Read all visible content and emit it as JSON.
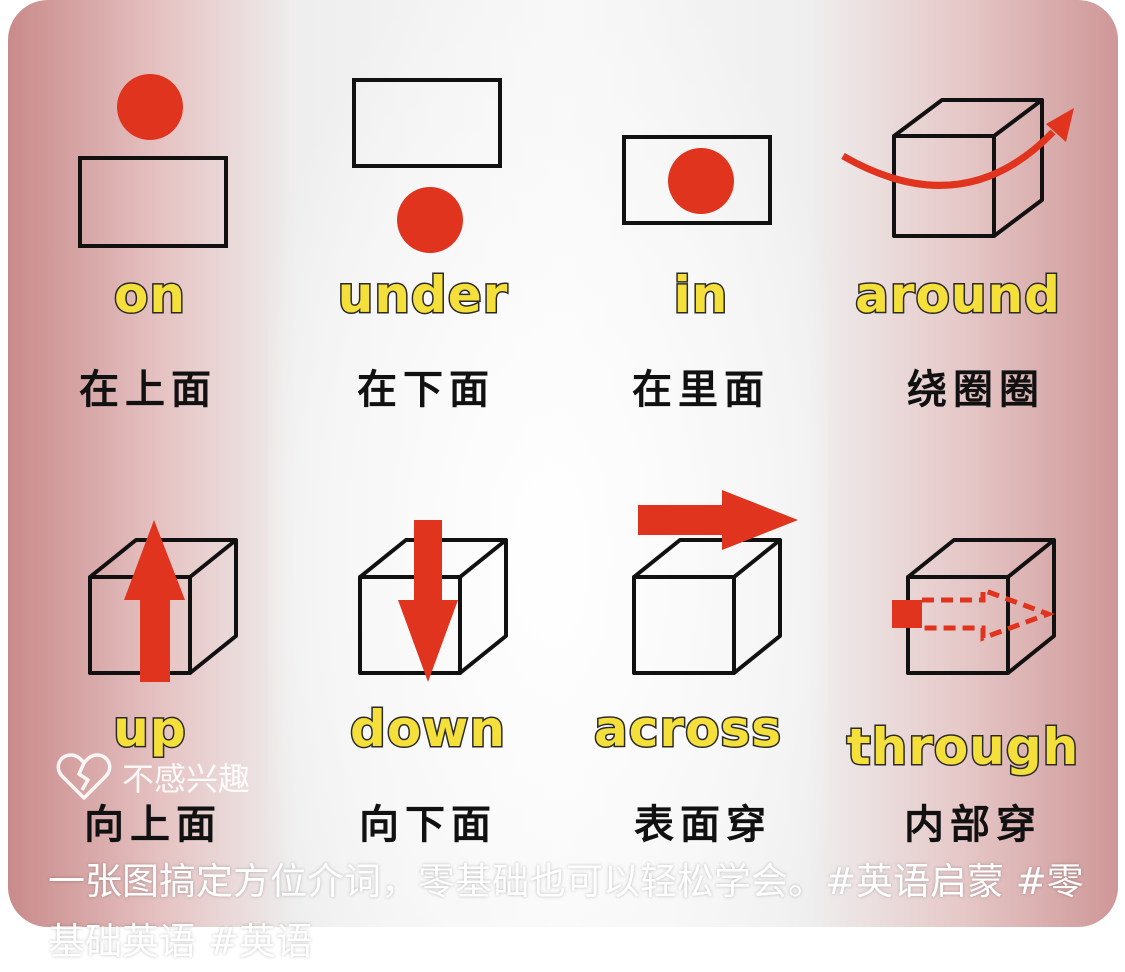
{
  "prepositions": [
    {
      "english": "on",
      "chinese": "在上面",
      "icon": "on-diagram-icon"
    },
    {
      "english": "under",
      "chinese": "在下面",
      "icon": "under-diagram-icon"
    },
    {
      "english": "in",
      "chinese": "在里面",
      "icon": "in-diagram-icon"
    },
    {
      "english": "around",
      "chinese": "绕圈圈",
      "icon": "around-diagram-icon"
    },
    {
      "english": "up",
      "chinese": "向上面",
      "icon": "up-diagram-icon"
    },
    {
      "english": "down",
      "chinese": "向下面",
      "icon": "down-diagram-icon"
    },
    {
      "english": "across",
      "chinese": "表面穿",
      "icon": "across-diagram-icon"
    },
    {
      "english": "through",
      "chinese": "内部穿",
      "icon": "through-diagram-icon"
    }
  ],
  "overlay": {
    "not_interested_label": "不感兴趣",
    "not_interested_icon": "broken-heart-icon"
  },
  "caption": {
    "text": "一张图搞定方位介词，零基础也可以轻松学会。#英语启蒙 #零基础英语 #英语"
  },
  "colors": {
    "accent_red": "#e0341e",
    "label_yellow": "#f5df3b",
    "outline": "#111111"
  }
}
